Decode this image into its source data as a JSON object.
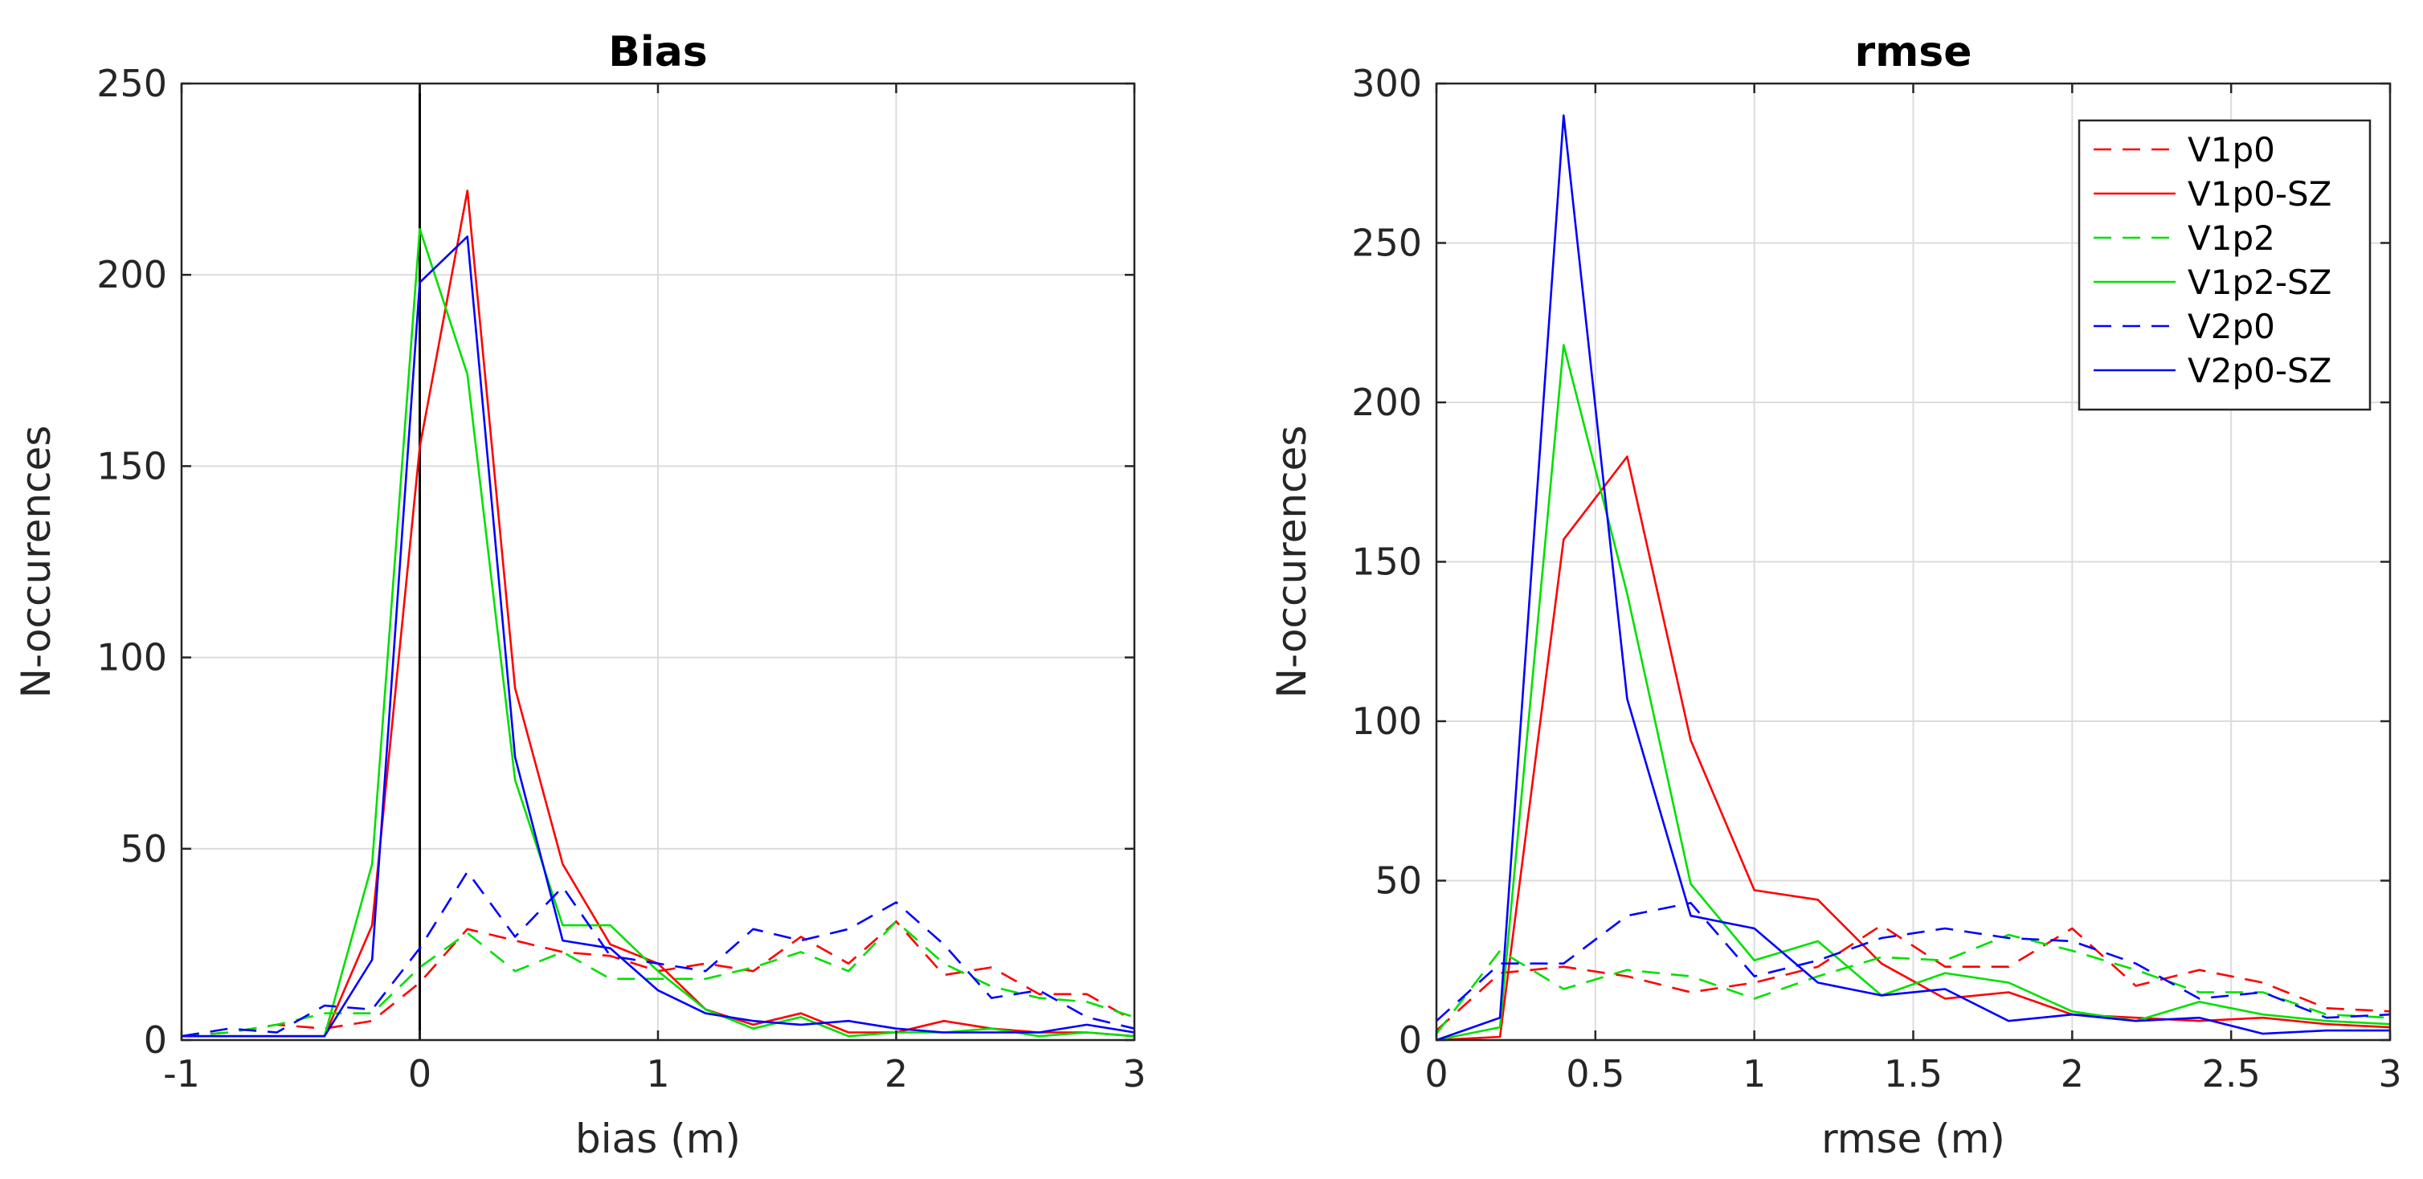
{
  "chart_data": [
    {
      "type": "line",
      "title": "Bias",
      "xlabel": "bias (m)",
      "ylabel": "N-occurences",
      "xlim": [
        -1,
        3
      ],
      "ylim": [
        0,
        250
      ],
      "xticks": [
        -1,
        0,
        1,
        2,
        3
      ],
      "xtick_labels": [
        "-1",
        "0",
        "1",
        "2",
        "3"
      ],
      "yticks": [
        0,
        50,
        100,
        150,
        200,
        250
      ],
      "ytick_labels": [
        "0",
        "50",
        "100",
        "150",
        "200",
        "250"
      ],
      "grid": true,
      "vline_at": 0,
      "legend": false,
      "x": [
        -1,
        -0.8,
        -0.6,
        -0.4,
        -0.2,
        0,
        0.2,
        0.4,
        0.6,
        0.8,
        1,
        1.2,
        1.4,
        1.6,
        1.8,
        2,
        2.2,
        2.4,
        2.6,
        2.8,
        3
      ],
      "series": [
        {
          "name": "V1p0",
          "color": "#ff0000",
          "dash": true,
          "values": [
            1,
            2,
            4,
            3,
            5,
            15,
            29,
            26,
            23,
            22,
            18,
            20,
            18,
            27,
            20,
            31,
            17,
            19,
            12,
            12,
            5
          ]
        },
        {
          "name": "V1p0-SZ",
          "color": "#ff0000",
          "dash": false,
          "values": [
            1,
            1,
            1,
            1,
            30,
            155,
            222,
            92,
            46,
            25,
            20,
            8,
            4,
            7,
            2,
            2,
            5,
            3,
            2,
            2,
            1
          ]
        },
        {
          "name": "V1p2",
          "color": "#00e000",
          "dash": true,
          "values": [
            1,
            2,
            4,
            7,
            7,
            19,
            28,
            18,
            23,
            16,
            16,
            16,
            19,
            23,
            18,
            31,
            20,
            14,
            11,
            10,
            6
          ]
        },
        {
          "name": "V1p2-SZ",
          "color": "#00e000",
          "dash": false,
          "values": [
            1,
            1,
            1,
            1,
            46,
            212,
            174,
            68,
            30,
            30,
            18,
            8,
            3,
            6,
            1,
            2,
            2,
            3,
            1,
            2,
            1
          ]
        },
        {
          "name": "V2p0",
          "color": "#0000ff",
          "dash": true,
          "values": [
            1,
            3,
            2,
            9,
            8,
            24,
            44,
            27,
            40,
            22,
            20,
            18,
            29,
            26,
            29,
            36,
            25,
            11,
            13,
            6,
            3
          ]
        },
        {
          "name": "V2p0-SZ",
          "color": "#0000ff",
          "dash": false,
          "values": [
            1,
            1,
            1,
            1,
            21,
            198,
            210,
            74,
            26,
            24,
            13,
            7,
            5,
            4,
            5,
            3,
            2,
            2,
            2,
            4,
            2
          ]
        }
      ]
    },
    {
      "type": "line",
      "title": "rmse",
      "xlabel": "rmse (m)",
      "ylabel": "N-occurences",
      "xlim": [
        0,
        3
      ],
      "ylim": [
        0,
        300
      ],
      "xticks": [
        0,
        0.5,
        1,
        1.5,
        2,
        2.5,
        3
      ],
      "xtick_labels": [
        "0",
        "0.5",
        "1",
        "1.5",
        "2",
        "2.5",
        "3"
      ],
      "yticks": [
        0,
        50,
        100,
        150,
        200,
        250,
        300
      ],
      "ytick_labels": [
        "0",
        "50",
        "100",
        "150",
        "200",
        "250",
        "300"
      ],
      "grid": true,
      "legend": true,
      "legend_position": "top-right",
      "x": [
        0,
        0.2,
        0.4,
        0.6,
        0.8,
        1,
        1.2,
        1.4,
        1.6,
        1.8,
        2,
        2.2,
        2.4,
        2.6,
        2.8,
        3
      ],
      "series": [
        {
          "name": "V1p0",
          "color": "#ff0000",
          "dash": true,
          "values": [
            3,
            21,
            23,
            20,
            15,
            18,
            23,
            36,
            23,
            23,
            35,
            17,
            22,
            18,
            10,
            9
          ]
        },
        {
          "name": "V1p0-SZ",
          "color": "#ff0000",
          "dash": false,
          "values": [
            0,
            1,
            157,
            183,
            94,
            47,
            44,
            24,
            13,
            15,
            8,
            7,
            6,
            7,
            5,
            4
          ]
        },
        {
          "name": "V1p2",
          "color": "#00e000",
          "dash": true,
          "values": [
            2,
            28,
            16,
            22,
            20,
            13,
            20,
            26,
            25,
            33,
            28,
            22,
            15,
            15,
            8,
            7
          ]
        },
        {
          "name": "V1p2-SZ",
          "color": "#00e000",
          "dash": false,
          "values": [
            0,
            4,
            218,
            140,
            49,
            25,
            31,
            14,
            21,
            18,
            9,
            6,
            12,
            8,
            6,
            5
          ]
        },
        {
          "name": "V2p0",
          "color": "#0000ff",
          "dash": true,
          "values": [
            6,
            24,
            24,
            39,
            43,
            20,
            25,
            32,
            35,
            32,
            31,
            24,
            13,
            15,
            7,
            8
          ]
        },
        {
          "name": "V2p0-SZ",
          "color": "#0000ff",
          "dash": false,
          "values": [
            0,
            7,
            290,
            107,
            39,
            35,
            18,
            14,
            16,
            6,
            8,
            6,
            7,
            2,
            3,
            3
          ]
        }
      ]
    }
  ]
}
